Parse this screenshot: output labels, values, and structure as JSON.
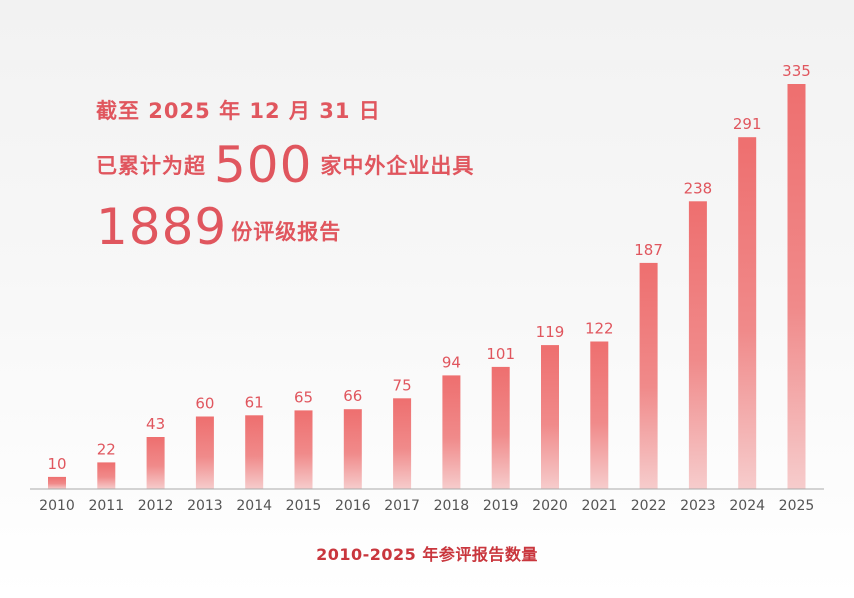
{
  "headline": {
    "line1": "截至 2025 年 12 月 31 日",
    "line2_prefix": "已累计为超",
    "line2_number": "500",
    "line2_suffix": "家中外企业出具",
    "line3_number": "1889",
    "line3_suffix": "份评级报告"
  },
  "caption": "2010-2025 年参评报告数量",
  "colors": {
    "bar_top": "#ee6f6f",
    "bar_bottom": "#f5c8c8",
    "value_label": "#e0565e",
    "axis_label": "#555555",
    "axis_line": "#aaaaaa",
    "caption": "#c9363d"
  },
  "chart_data": {
    "type": "bar",
    "categories": [
      "2010",
      "2011",
      "2012",
      "2013",
      "2014",
      "2015",
      "2016",
      "2017",
      "2018",
      "2019",
      "2020",
      "2021",
      "2022",
      "2023",
      "2024",
      "2025"
    ],
    "values": [
      10,
      22,
      43,
      60,
      61,
      65,
      66,
      75,
      94,
      101,
      119,
      122,
      187,
      238,
      291,
      335
    ],
    "title": "",
    "xlabel": "2010-2025 年参评报告数量",
    "ylabel": "",
    "ylim": [
      0,
      335
    ],
    "grid": false,
    "legend": "none"
  }
}
